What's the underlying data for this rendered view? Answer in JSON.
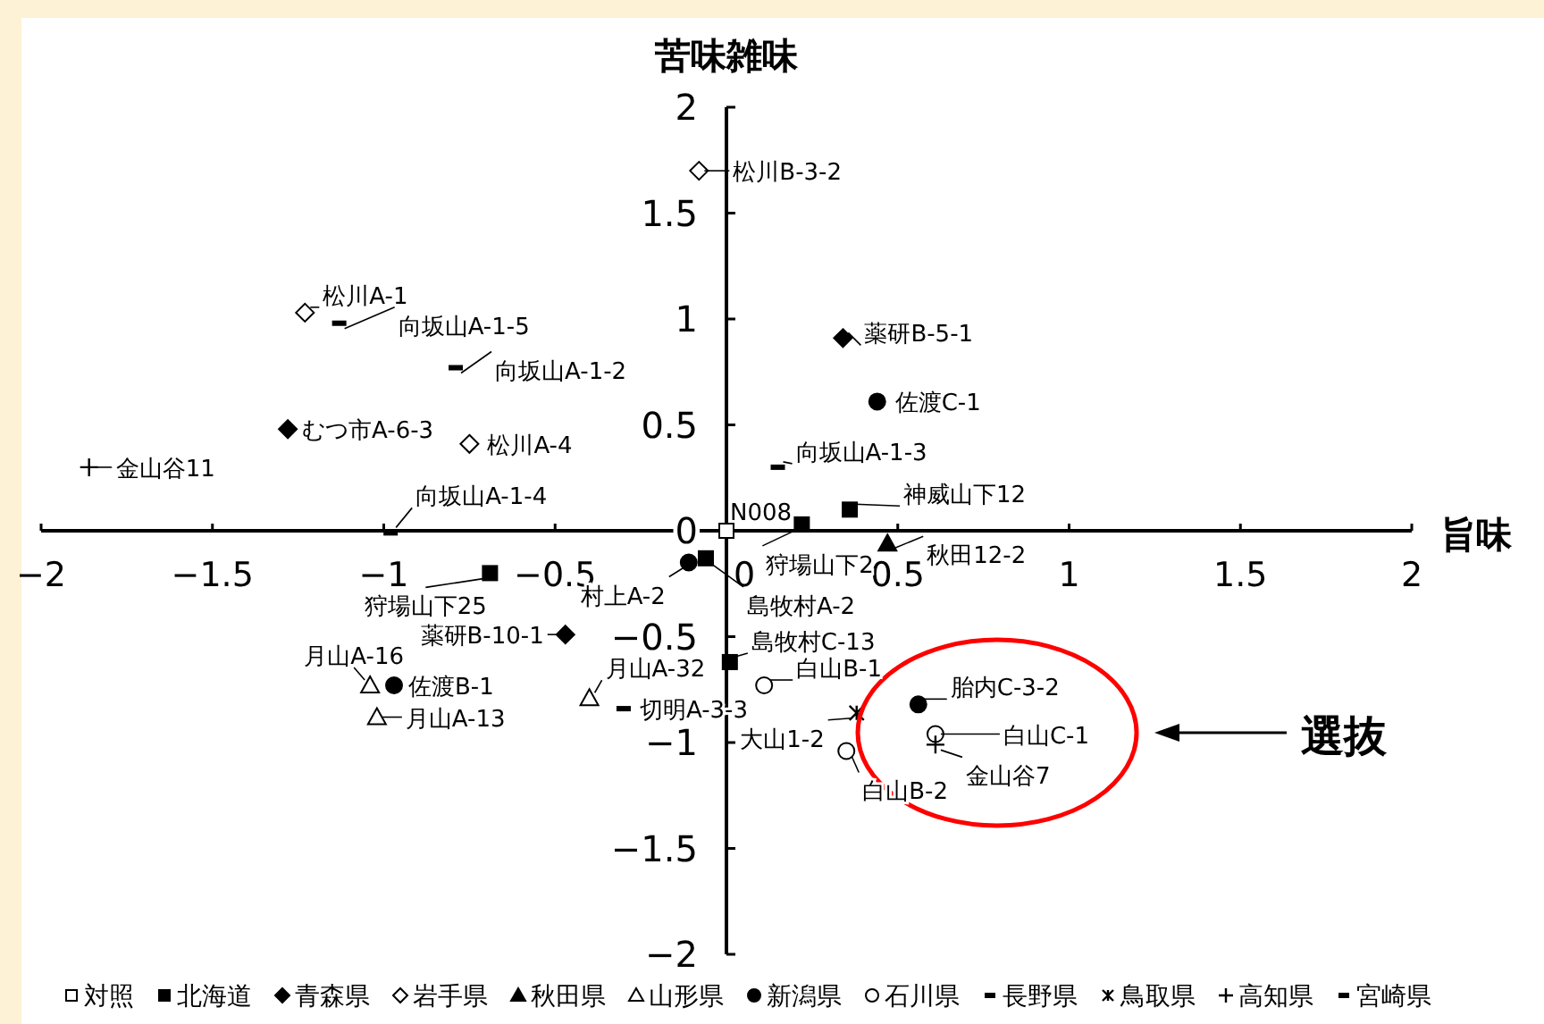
{
  "chart_data": {
    "type": "scatter",
    "xlabel": "旨味",
    "ylabel": "苦味雑味",
    "xlim": [
      -2,
      2
    ],
    "ylim": [
      -2,
      2
    ],
    "xticks": [
      {
        "value": -2,
        "label": "−2"
      },
      {
        "value": -1.5,
        "label": "−1.5"
      },
      {
        "value": -1,
        "label": "−1"
      },
      {
        "value": -0.5,
        "label": "−0.5"
      },
      0,
      0.5,
      1,
      1.5,
      2
    ],
    "yticks": [
      {
        "value": -2,
        "label": "−2"
      },
      {
        "value": -1.5,
        "label": "−1.5"
      },
      {
        "value": -1,
        "label": "−1"
      },
      {
        "value": -0.5,
        "label": "−0.5"
      },
      0,
      0.5,
      1,
      1.5,
      2
    ],
    "grid": false,
    "legend": "bottom",
    "series": [
      {
        "name": "対照",
        "color": "#000000",
        "marker": "square",
        "x": [
          0
        ],
        "values": [
          0
        ]
      },
      {
        "name": "北海道",
        "color": "#000000",
        "marker": "square",
        "x": [
          0.22,
          0.36,
          -0.69,
          -0.06,
          0.01
        ],
        "values": [
          0.03,
          0.1,
          -0.2,
          -0.13,
          -0.62
        ]
      },
      {
        "name": "青森県",
        "color": "#000000",
        "marker": "diamond",
        "x": [
          0.34,
          -1.28,
          -0.47
        ],
        "values": [
          0.91,
          0.48,
          -0.49
        ]
      },
      {
        "name": "岩手県",
        "color": "#000000",
        "marker": "diamond",
        "x": [
          -0.08,
          -1.23,
          -0.75
        ],
        "values": [
          1.7,
          1.03,
          0.41
        ]
      },
      {
        "name": "秋田県",
        "color": "#000000",
        "marker": "triangle",
        "x": [
          0.47
        ],
        "values": [
          -0.06
        ]
      },
      {
        "name": "山形県",
        "color": "#000000",
        "marker": "triangle",
        "x": [
          -1.04,
          -1.02,
          -0.4
        ],
        "values": [
          -0.73,
          -0.88,
          -0.79
        ]
      },
      {
        "name": "新潟県",
        "color": "#000000",
        "marker": "circle",
        "x": [
          0.44,
          -0.11,
          -0.97,
          0.56
        ],
        "values": [
          0.61,
          -0.15,
          -0.73,
          -0.82
        ]
      },
      {
        "name": "石川県",
        "color": "#000000",
        "marker": "circle",
        "x": [
          0.11,
          0.61,
          0.35
        ],
        "values": [
          -0.73,
          -0.96,
          -1.04
        ]
      },
      {
        "name": "長野県",
        "color": "#000000",
        "x": [
          -0.3
        ],
        "values": [
          -0.84
        ]
      },
      {
        "name": "鳥取県",
        "color": "#000000",
        "marker": "cross",
        "x": [
          0.38
        ],
        "values": [
          -0.86
        ]
      },
      {
        "name": "高知県",
        "color": "#000000",
        "marker": "plus",
        "x": [
          -1.86,
          0.61
        ],
        "values": [
          0.3,
          -1.01
        ]
      },
      {
        "name": "宮崎県",
        "color": "#000000",
        "x": [
          -1.13,
          -0.79,
          0.15,
          -0.98
        ],
        "values": [
          0.98,
          0.77,
          0.3,
          -0.01
        ]
      }
    ],
    "annotations": [
      {
        "text": "N008",
        "x": 0,
        "y": 0
      },
      {
        "text": "狩場山下2",
        "x": 0.22,
        "y": 0.03
      },
      {
        "text": "神威山下12",
        "x": 0.36,
        "y": 0.1
      },
      {
        "text": "狩場山下25",
        "x": -0.69,
        "y": -0.2
      },
      {
        "text": "島牧村A-2",
        "x": -0.06,
        "y": -0.13
      },
      {
        "text": "島牧村C-13",
        "x": 0.01,
        "y": -0.62
      },
      {
        "text": "薬研B-5-1",
        "x": 0.34,
        "y": 0.91
      },
      {
        "text": "むつ市A-6-3",
        "x": -1.28,
        "y": 0.48
      },
      {
        "text": "薬研B-10-1",
        "x": -0.47,
        "y": -0.49
      },
      {
        "text": "松川B-3-2",
        "x": -0.08,
        "y": 1.7
      },
      {
        "text": "松川A-1",
        "x": -1.23,
        "y": 1.03
      },
      {
        "text": "松川A-4",
        "x": -0.75,
        "y": 0.41
      },
      {
        "text": "秋田12-2",
        "x": 0.47,
        "y": -0.06
      },
      {
        "text": "月山A-16",
        "x": -1.04,
        "y": -0.73
      },
      {
        "text": "月山A-13",
        "x": -1.02,
        "y": -0.88
      },
      {
        "text": "月山A-32",
        "x": -0.4,
        "y": -0.79
      },
      {
        "text": "佐渡C-1",
        "x": 0.44,
        "y": 0.61
      },
      {
        "text": "村上A-2",
        "x": -0.11,
        "y": -0.15
      },
      {
        "text": "佐渡B-1",
        "x": -0.97,
        "y": -0.73
      },
      {
        "text": "胎内C-3-2",
        "x": 0.56,
        "y": -0.82
      },
      {
        "text": "白山B-1",
        "x": 0.11,
        "y": -0.73
      },
      {
        "text": "白山C-1",
        "x": 0.61,
        "y": -0.96
      },
      {
        "text": "白山B-2",
        "x": 0.35,
        "y": -1.04
      },
      {
        "text": "切明A-3-3",
        "x": -0.3,
        "y": -0.84
      },
      {
        "text": "大山1-2",
        "x": 0.38,
        "y": -0.86
      },
      {
        "text": "金山谷11",
        "x": -1.86,
        "y": 0.3
      },
      {
        "text": "金山谷7",
        "x": 0.61,
        "y": -1.01
      },
      {
        "text": "向坂山A-1-5",
        "x": -1.13,
        "y": 0.98
      },
      {
        "text": "向坂山A-1-2",
        "x": -0.79,
        "y": 0.77
      },
      {
        "text": "向坂山A-1-3",
        "x": 0.15,
        "y": 0.3
      },
      {
        "text": "向坂山A-1-4",
        "x": -0.98,
        "y": -0.01
      },
      "選抜"
    ]
  }
}
